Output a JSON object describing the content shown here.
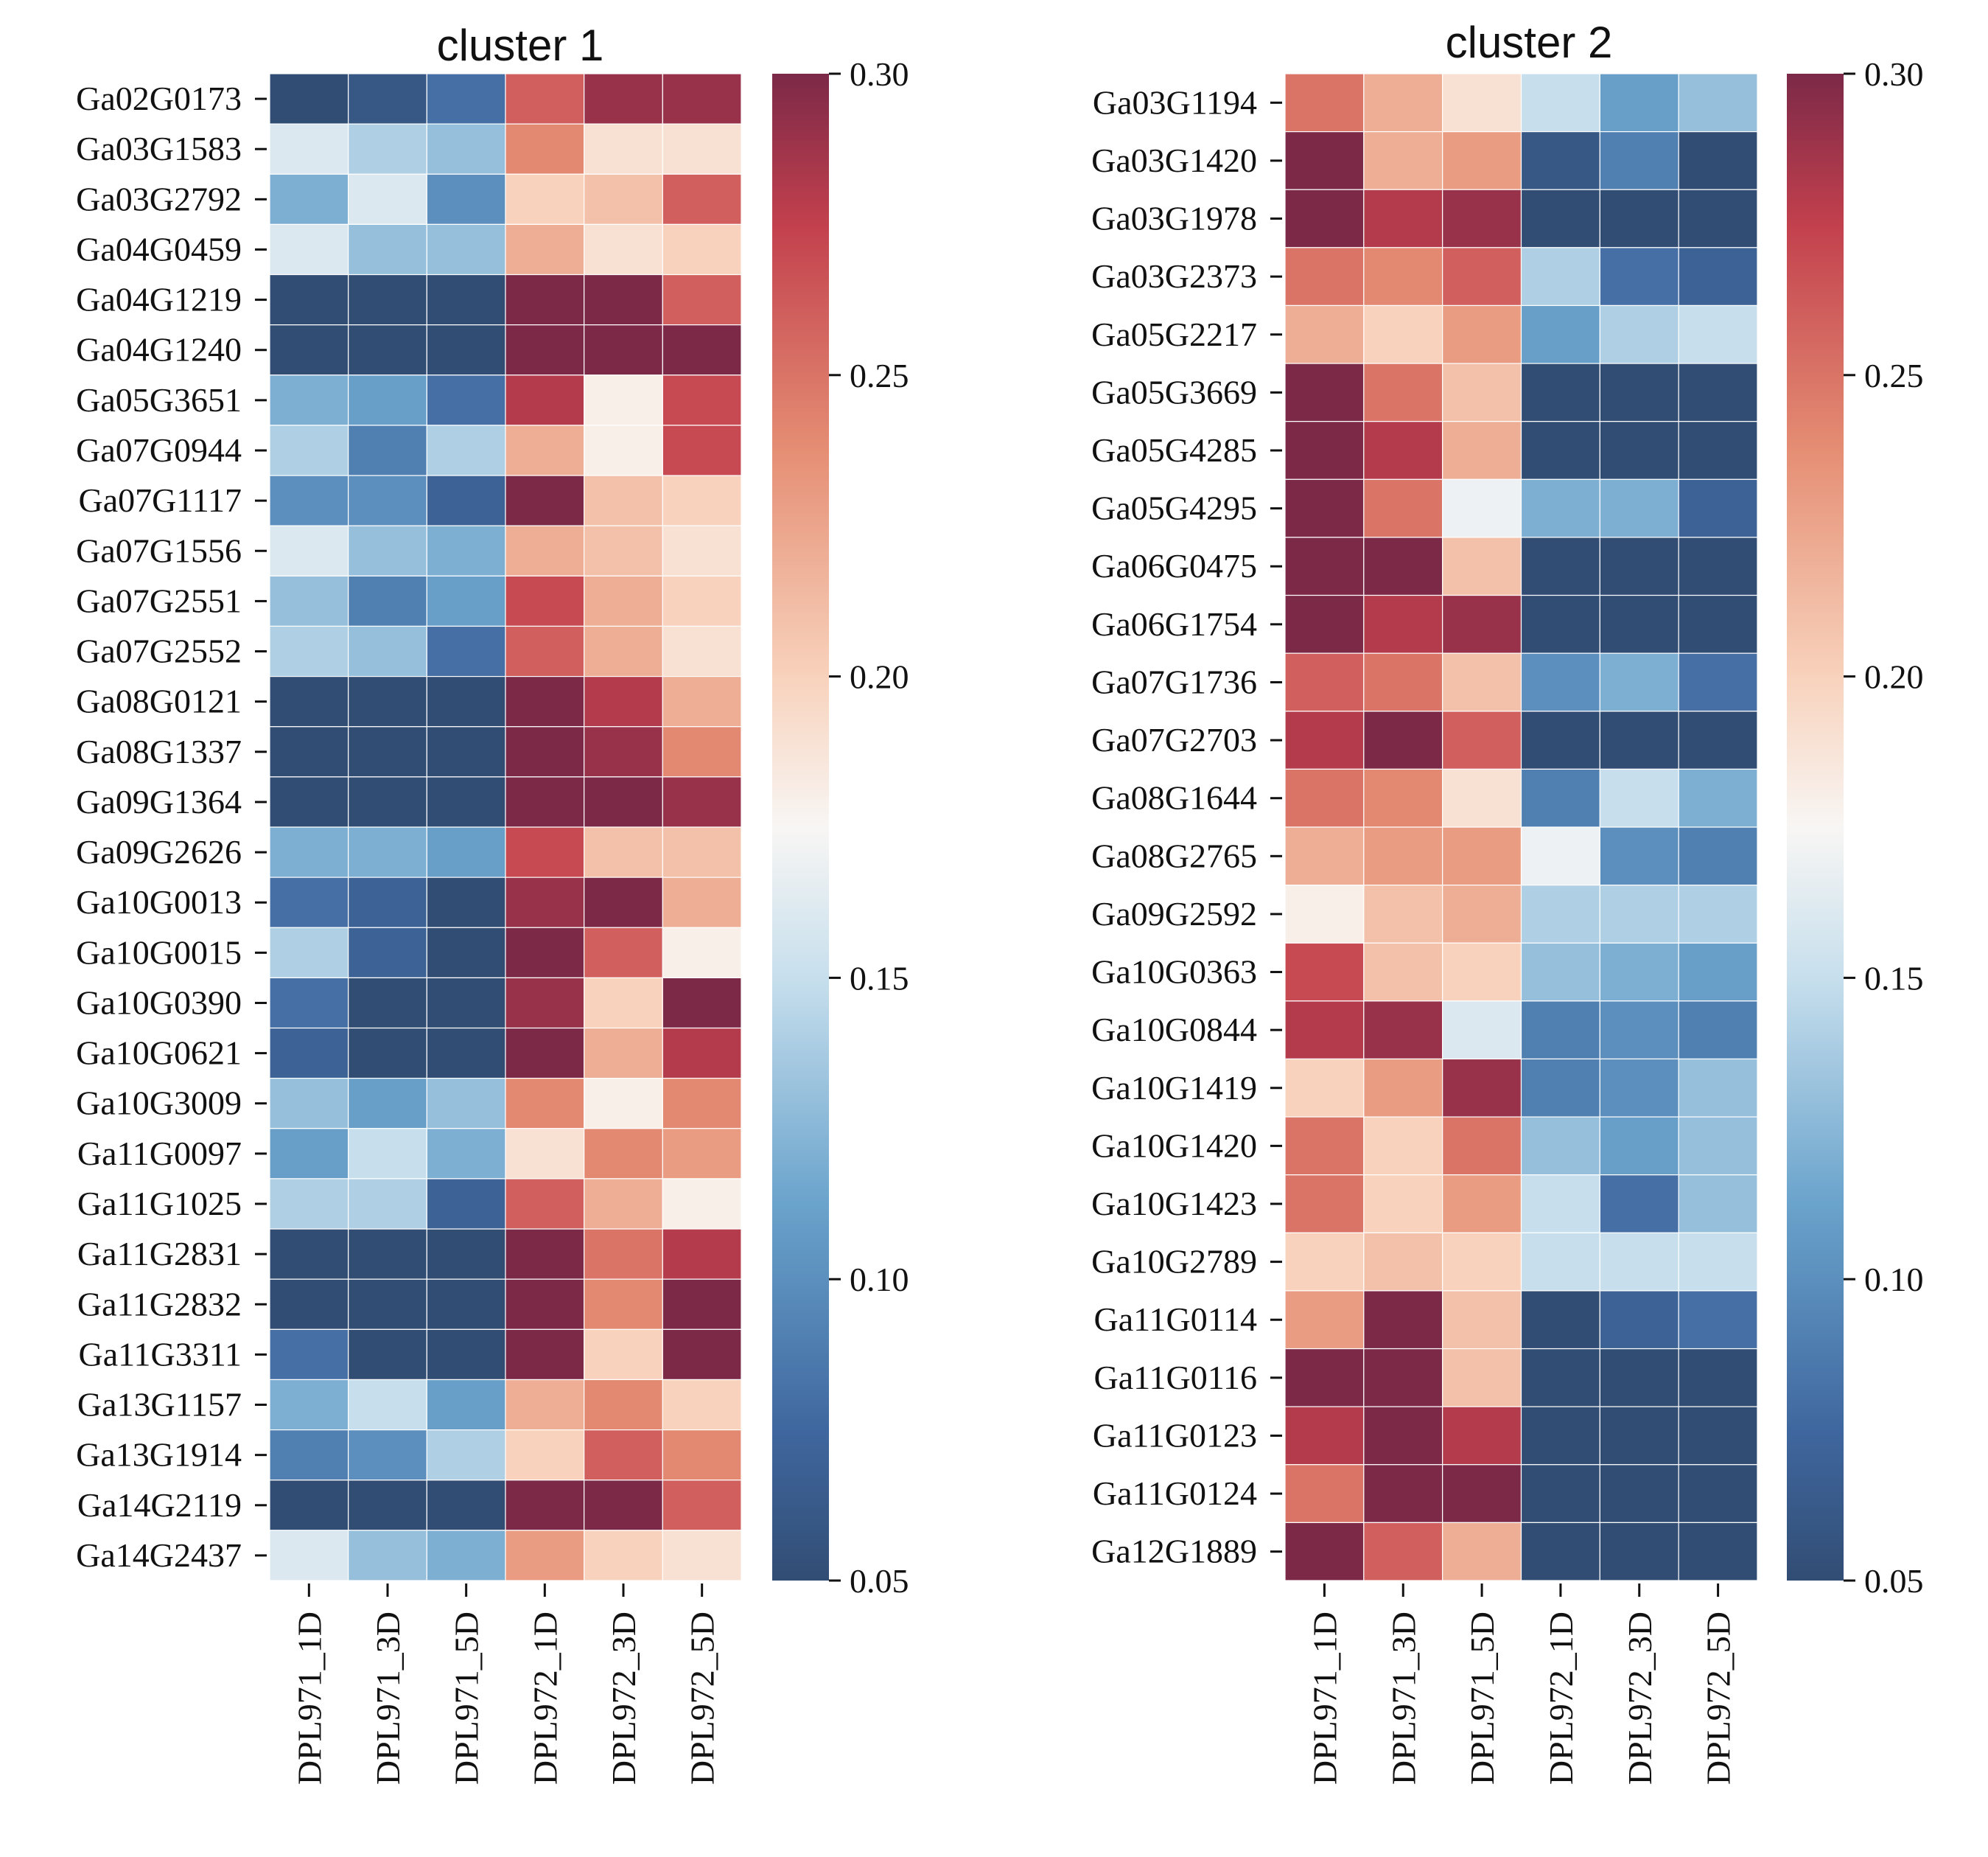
{
  "chart_data": [
    {
      "type": "heatmap",
      "title": "cluster 1",
      "xlabel": "",
      "ylabel": "",
      "columns": [
        "DPL971_1D",
        "DPL971_3D",
        "DPL971_5D",
        "DPL972_1D",
        "DPL972_3D",
        "DPL972_5D"
      ],
      "rows": [
        "Ga02G0173",
        "Ga03G1583",
        "Ga03G2792",
        "Ga04G0459",
        "Ga04G1219",
        "Ga04G1240",
        "Ga05G3651",
        "Ga07G0944",
        "Ga07G1117",
        "Ga07G1556",
        "Ga07G2551",
        "Ga07G2552",
        "Ga08G0121",
        "Ga08G1337",
        "Ga09G1364",
        "Ga09G2626",
        "Ga10G0013",
        "Ga10G0015",
        "Ga10G0390",
        "Ga10G0621",
        "Ga10G3009",
        "Ga11G0097",
        "Ga11G1025",
        "Ga11G2831",
        "Ga11G2832",
        "Ga11G3311",
        "Ga13G1157",
        "Ga13G1914",
        "Ga14G2119",
        "Ga14G2437"
      ],
      "values": [
        [
          0.05,
          0.06,
          0.08,
          0.26,
          0.29,
          0.29
        ],
        [
          0.16,
          0.14,
          0.13,
          0.24,
          0.19,
          0.19
        ],
        [
          0.12,
          0.16,
          0.1,
          0.2,
          0.21,
          0.26
        ],
        [
          0.16,
          0.13,
          0.13,
          0.22,
          0.19,
          0.2
        ],
        [
          0.05,
          0.05,
          0.05,
          0.3,
          0.3,
          0.26
        ],
        [
          0.05,
          0.05,
          0.05,
          0.3,
          0.3,
          0.3
        ],
        [
          0.12,
          0.11,
          0.08,
          0.28,
          0.18,
          0.27
        ],
        [
          0.14,
          0.09,
          0.14,
          0.22,
          0.18,
          0.27
        ],
        [
          0.1,
          0.1,
          0.07,
          0.3,
          0.21,
          0.2
        ],
        [
          0.16,
          0.13,
          0.12,
          0.22,
          0.21,
          0.19
        ],
        [
          0.13,
          0.09,
          0.11,
          0.27,
          0.22,
          0.2
        ],
        [
          0.14,
          0.13,
          0.08,
          0.26,
          0.22,
          0.19
        ],
        [
          0.05,
          0.05,
          0.05,
          0.3,
          0.28,
          0.22
        ],
        [
          0.05,
          0.05,
          0.05,
          0.3,
          0.29,
          0.24
        ],
        [
          0.05,
          0.05,
          0.05,
          0.3,
          0.3,
          0.29
        ],
        [
          0.12,
          0.12,
          0.11,
          0.27,
          0.21,
          0.21
        ],
        [
          0.08,
          0.07,
          0.05,
          0.29,
          0.3,
          0.22
        ],
        [
          0.14,
          0.07,
          0.05,
          0.3,
          0.26,
          0.18
        ],
        [
          0.08,
          0.05,
          0.05,
          0.29,
          0.2,
          0.3
        ],
        [
          0.07,
          0.05,
          0.05,
          0.3,
          0.22,
          0.28
        ],
        [
          0.13,
          0.11,
          0.13,
          0.24,
          0.18,
          0.24
        ],
        [
          0.11,
          0.15,
          0.12,
          0.19,
          0.24,
          0.23
        ],
        [
          0.14,
          0.14,
          0.07,
          0.26,
          0.22,
          0.18
        ],
        [
          0.05,
          0.05,
          0.05,
          0.3,
          0.25,
          0.28
        ],
        [
          0.05,
          0.05,
          0.05,
          0.3,
          0.24,
          0.3
        ],
        [
          0.08,
          0.05,
          0.05,
          0.3,
          0.2,
          0.3
        ],
        [
          0.12,
          0.15,
          0.11,
          0.22,
          0.24,
          0.2
        ],
        [
          0.09,
          0.1,
          0.14,
          0.2,
          0.26,
          0.24
        ],
        [
          0.05,
          0.05,
          0.05,
          0.3,
          0.3,
          0.26
        ],
        [
          0.16,
          0.13,
          0.12,
          0.23,
          0.2,
          0.19
        ]
      ],
      "colorbar": {
        "vmin": 0.05,
        "vmax": 0.3,
        "ticks": [
          "0.05",
          "0.10",
          "0.15",
          "0.20",
          "0.25",
          "0.30"
        ],
        "colormap": "RdBu_r"
      }
    },
    {
      "type": "heatmap",
      "title": "cluster 2",
      "xlabel": "",
      "ylabel": "",
      "columns": [
        "DPL971_1D",
        "DPL971_3D",
        "DPL971_5D",
        "DPL972_1D",
        "DPL972_3D",
        "DPL972_5D"
      ],
      "rows": [
        "Ga03G1194",
        "Ga03G1420",
        "Ga03G1978",
        "Ga03G2373",
        "Ga05G2217",
        "Ga05G3669",
        "Ga05G4285",
        "Ga05G4295",
        "Ga06G0475",
        "Ga06G1754",
        "Ga07G1736",
        "Ga07G2703",
        "Ga08G1644",
        "Ga08G2765",
        "Ga09G2592",
        "Ga10G0363",
        "Ga10G0844",
        "Ga10G1419",
        "Ga10G1420",
        "Ga10G1423",
        "Ga10G2789",
        "Ga11G0114",
        "Ga11G0116",
        "Ga11G0123",
        "Ga11G0124",
        "Ga12G1889"
      ],
      "values": [
        [
          0.25,
          0.22,
          0.19,
          0.15,
          0.11,
          0.13
        ],
        [
          0.3,
          0.22,
          0.23,
          0.06,
          0.09,
          0.05
        ],
        [
          0.3,
          0.28,
          0.29,
          0.05,
          0.05,
          0.05
        ],
        [
          0.25,
          0.24,
          0.26,
          0.14,
          0.08,
          0.07
        ],
        [
          0.22,
          0.2,
          0.23,
          0.11,
          0.14,
          0.15
        ],
        [
          0.3,
          0.25,
          0.21,
          0.05,
          0.05,
          0.05
        ],
        [
          0.3,
          0.28,
          0.22,
          0.05,
          0.05,
          0.05
        ],
        [
          0.3,
          0.25,
          0.17,
          0.12,
          0.12,
          0.07
        ],
        [
          0.3,
          0.3,
          0.21,
          0.05,
          0.05,
          0.05
        ],
        [
          0.3,
          0.28,
          0.29,
          0.05,
          0.05,
          0.05
        ],
        [
          0.26,
          0.25,
          0.21,
          0.1,
          0.12,
          0.08
        ],
        [
          0.28,
          0.3,
          0.26,
          0.05,
          0.05,
          0.05
        ],
        [
          0.25,
          0.24,
          0.19,
          0.09,
          0.15,
          0.12
        ],
        [
          0.22,
          0.23,
          0.23,
          0.17,
          0.1,
          0.09
        ],
        [
          0.18,
          0.21,
          0.22,
          0.14,
          0.14,
          0.14
        ],
        [
          0.27,
          0.21,
          0.2,
          0.13,
          0.12,
          0.11
        ],
        [
          0.28,
          0.29,
          0.16,
          0.09,
          0.1,
          0.09
        ],
        [
          0.2,
          0.23,
          0.29,
          0.09,
          0.1,
          0.13
        ],
        [
          0.25,
          0.2,
          0.25,
          0.13,
          0.11,
          0.13
        ],
        [
          0.25,
          0.2,
          0.23,
          0.15,
          0.08,
          0.13
        ],
        [
          0.2,
          0.21,
          0.2,
          0.15,
          0.15,
          0.15
        ],
        [
          0.23,
          0.3,
          0.21,
          0.05,
          0.07,
          0.08
        ],
        [
          0.3,
          0.3,
          0.21,
          0.05,
          0.05,
          0.05
        ],
        [
          0.28,
          0.3,
          0.28,
          0.05,
          0.05,
          0.05
        ],
        [
          0.25,
          0.3,
          0.3,
          0.05,
          0.05,
          0.05
        ],
        [
          0.3,
          0.26,
          0.22,
          0.05,
          0.05,
          0.05
        ]
      ],
      "colorbar": {
        "vmin": 0.05,
        "vmax": 0.3,
        "ticks": [
          "0.05",
          "0.10",
          "0.15",
          "0.20",
          "0.25",
          "0.30"
        ],
        "colormap": "RdBu_r"
      }
    }
  ]
}
